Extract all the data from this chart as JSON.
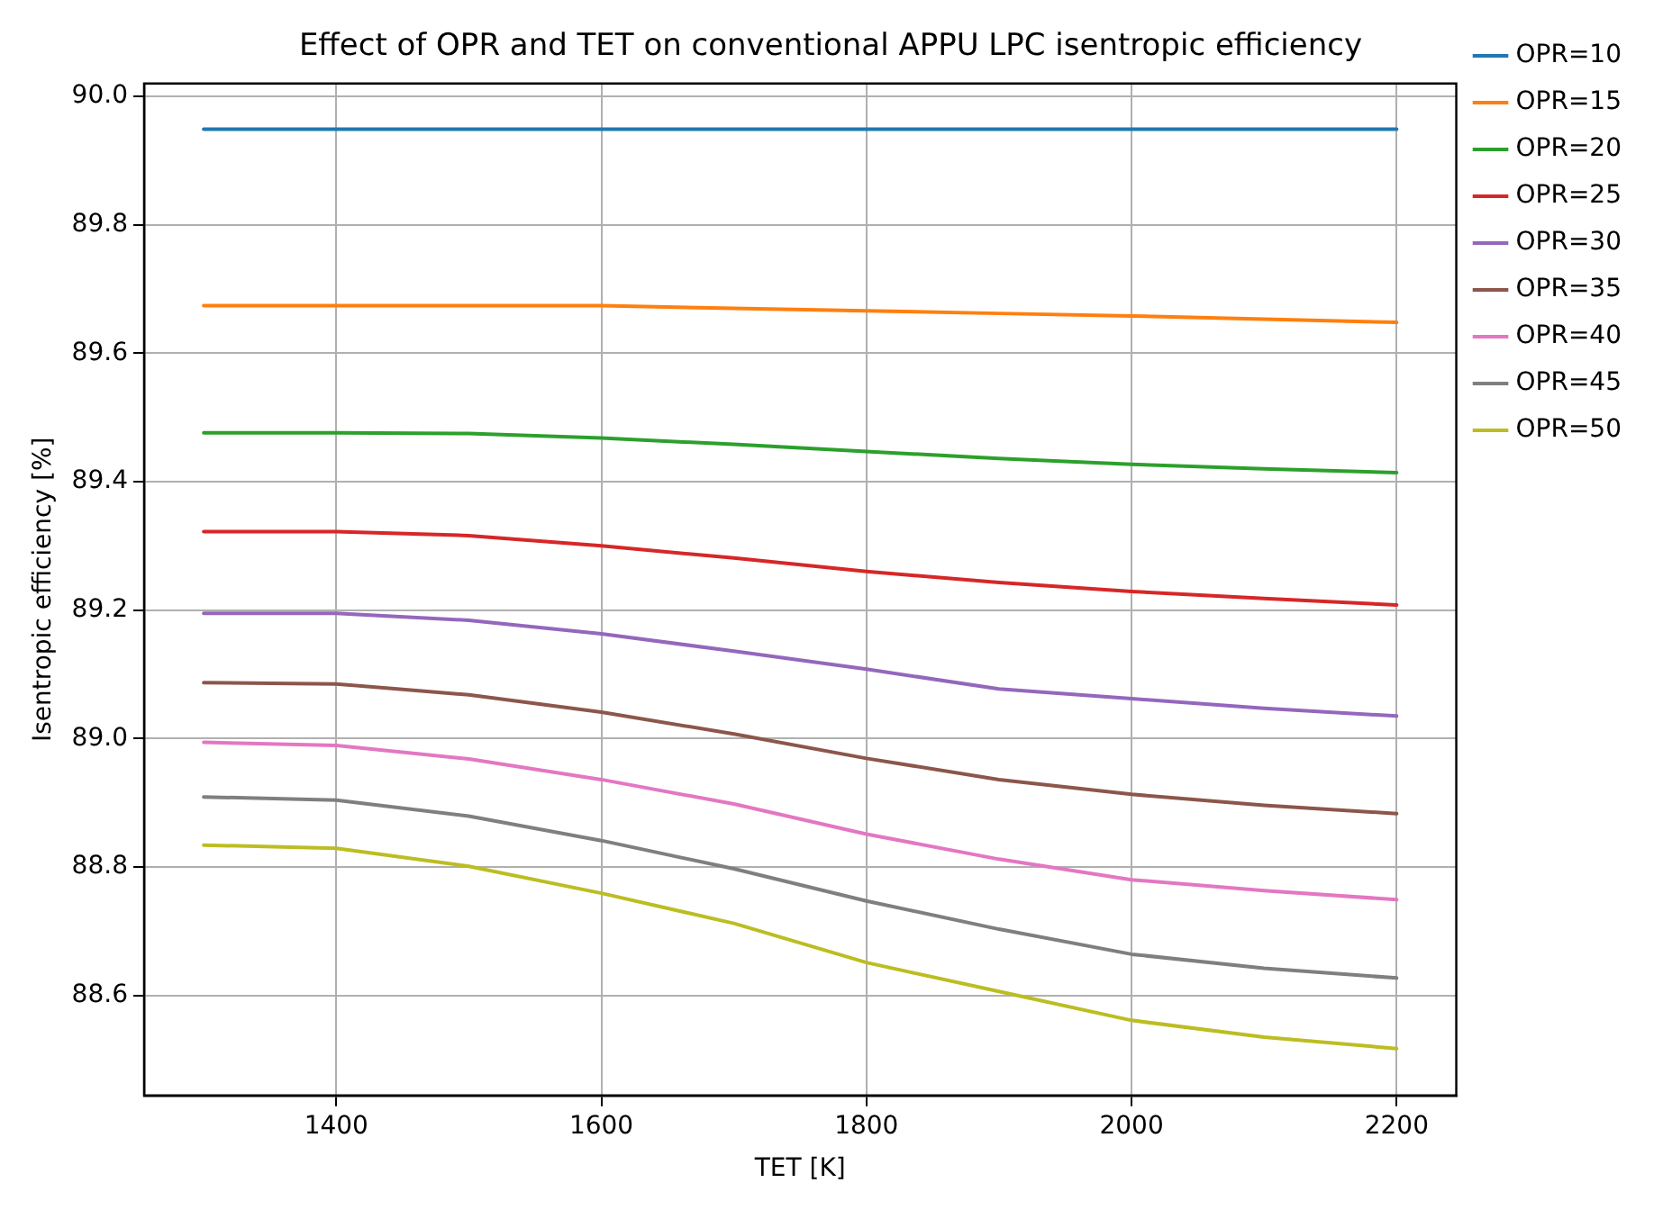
{
  "chart_data": {
    "type": "line",
    "title": "Effect of OPR and TET on conventional APPU LPC isentropic efficiency",
    "xlabel": "TET [K]",
    "ylabel": "Isentropic efficiency [%]",
    "x": [
      1300,
      1400,
      1500,
      1600,
      1700,
      1800,
      1900,
      2000,
      2100,
      2200
    ],
    "series": [
      {
        "name": "OPR=10",
        "color": "#1f77b4",
        "values": [
          89.949,
          89.949,
          89.949,
          89.949,
          89.949,
          89.949,
          89.949,
          89.949,
          89.949,
          89.949
        ]
      },
      {
        "name": "OPR=15",
        "color": "#ff7f0e",
        "values": [
          89.674,
          89.674,
          89.674,
          89.674,
          89.67,
          89.666,
          89.662,
          89.658,
          89.653,
          89.648
        ]
      },
      {
        "name": "OPR=20",
        "color": "#2ca02c",
        "values": [
          89.476,
          89.476,
          89.475,
          89.468,
          89.458,
          89.447,
          89.436,
          89.427,
          89.42,
          89.414
        ]
      },
      {
        "name": "OPR=25",
        "color": "#d62728",
        "values": [
          89.322,
          89.322,
          89.316,
          89.3,
          89.281,
          89.26,
          89.243,
          89.229,
          89.218,
          89.208
        ]
      },
      {
        "name": "OPR=30",
        "color": "#9467bd",
        "values": [
          89.195,
          89.195,
          89.184,
          89.163,
          89.136,
          89.108,
          89.077,
          89.062,
          89.047,
          89.035
        ]
      },
      {
        "name": "OPR=35",
        "color": "#8c564b",
        "values": [
          89.087,
          89.085,
          89.068,
          89.041,
          89.007,
          88.969,
          88.936,
          88.913,
          88.896,
          88.883
        ]
      },
      {
        "name": "OPR=40",
        "color": "#e377c2",
        "values": [
          88.994,
          88.989,
          88.968,
          88.936,
          88.898,
          88.851,
          88.812,
          88.78,
          88.763,
          88.749
        ]
      },
      {
        "name": "OPR=45",
        "color": "#7f7f7f",
        "values": [
          88.909,
          88.904,
          88.879,
          88.841,
          88.797,
          88.747,
          88.703,
          88.664,
          88.642,
          88.627
        ]
      },
      {
        "name": "OPR=50",
        "color": "#bcbd22",
        "values": [
          88.834,
          88.829,
          88.801,
          88.759,
          88.712,
          88.651,
          88.606,
          88.561,
          88.535,
          88.517
        ]
      }
    ],
    "xlim": [
      1255,
      2245
    ],
    "ylim": [
      88.444,
      90.02
    ],
    "xticks": [
      1400,
      1600,
      1800,
      2000,
      2200
    ],
    "yticks": [
      {
        "value": 88.6,
        "label": "88.6"
      },
      {
        "value": 88.8,
        "label": "88.8"
      },
      {
        "value": 89,
        "label": "89.0"
      },
      {
        "value": 89.2,
        "label": "89.2"
      },
      {
        "value": 89.4,
        "label": "89.4"
      },
      {
        "value": 89.6,
        "label": "89.6"
      },
      {
        "value": 89.8,
        "label": "89.8"
      },
      {
        "value": 90,
        "label": "90.0"
      }
    ],
    "grid": true,
    "legend": "right",
    "marker": "none",
    "line_style": "solid"
  }
}
